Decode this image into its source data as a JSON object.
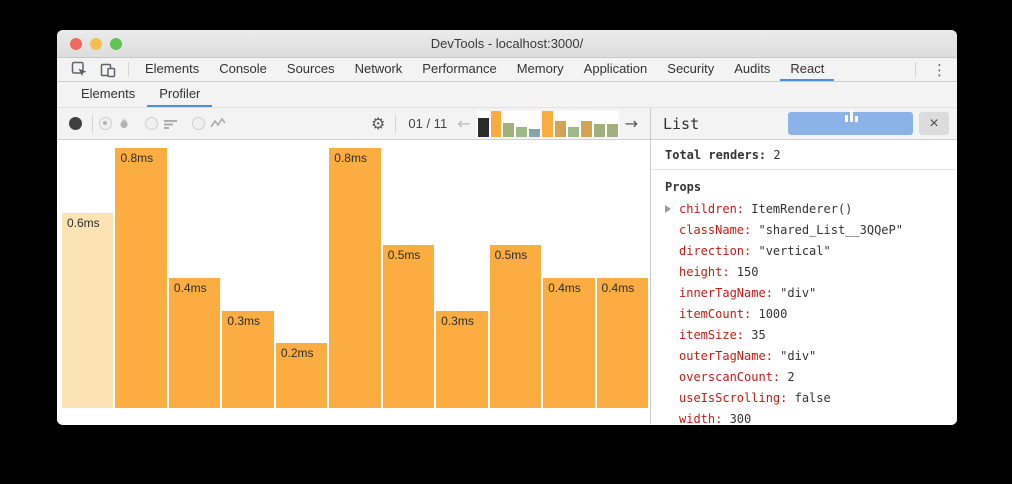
{
  "window": {
    "title": "DevTools - localhost:3000/"
  },
  "traffic_lights": {
    "red": "#ed6a5e",
    "yellow": "#f5bf4f",
    "green": "#61c454"
  },
  "main_tabs": {
    "items": [
      "Elements",
      "Console",
      "Sources",
      "Network",
      "Performance",
      "Memory",
      "Application",
      "Security",
      "Audits",
      "React"
    ],
    "selected": "React"
  },
  "sub_tabs": {
    "items": [
      "Elements",
      "Profiler"
    ],
    "selected": "Profiler"
  },
  "toolbar": {
    "record_icon": "record-circle",
    "view_toggles": [
      "flamegraph-view",
      "ranked-view",
      "interactions-view"
    ],
    "selected_toggle": "flamegraph-view",
    "gear_glyph": "⚙",
    "pagination_label": "01 / 11",
    "prev_arrow": "←",
    "next_arrow": "→",
    "minimap_bars": [
      {
        "color": "#2b2b2b",
        "h": 0.72
      },
      {
        "color": "#fbac3f",
        "h": 1.0
      },
      {
        "color": "#a2b07e",
        "h": 0.52
      },
      {
        "color": "#9db88a",
        "h": 0.4
      },
      {
        "color": "#86a4a8",
        "h": 0.3
      },
      {
        "color": "#fbac3f",
        "h": 1.0
      },
      {
        "color": "#d4a355",
        "h": 0.62
      },
      {
        "color": "#9db88a",
        "h": 0.4
      },
      {
        "color": "#d4a355",
        "h": 0.62
      },
      {
        "color": "#a2b07e",
        "h": 0.5
      },
      {
        "color": "#a2b07e",
        "h": 0.5
      }
    ]
  },
  "chart_data": {
    "type": "bar",
    "title": "React Profiler flamegraph - commit durations",
    "values": [
      0.6,
      0.8,
      0.4,
      0.3,
      0.2,
      0.8,
      0.5,
      0.3,
      0.5,
      0.4,
      0.4
    ],
    "labels": [
      "0.6ms",
      "0.8ms",
      "0.4ms",
      "0.3ms",
      "0.2ms",
      "0.8ms",
      "0.5ms",
      "0.3ms",
      "0.5ms",
      "0.4ms",
      "0.4ms"
    ],
    "unit": "ms",
    "ylim": [
      0,
      0.8
    ],
    "bar_color": "#fbad41",
    "highlight_color": "#fde3b4",
    "highlight_index": 0,
    "grid": false,
    "legend": false
  },
  "panel": {
    "title": "List",
    "close_glyph": "×",
    "total_renders_label": "Total renders:",
    "total_renders_value": "2",
    "props_label": "Props",
    "props": [
      {
        "key": "children",
        "value": "ItemRenderer()",
        "expandable": true
      },
      {
        "key": "className",
        "value": "\"shared_List__3QQeP\"",
        "expandable": false
      },
      {
        "key": "direction",
        "value": "\"vertical\"",
        "expandable": false
      },
      {
        "key": "height",
        "value": "150",
        "expandable": false
      },
      {
        "key": "innerTagName",
        "value": "\"div\"",
        "expandable": false
      },
      {
        "key": "itemCount",
        "value": "1000",
        "expandable": false
      },
      {
        "key": "itemSize",
        "value": "35",
        "expandable": false
      },
      {
        "key": "outerTagName",
        "value": "\"div\"",
        "expandable": false
      },
      {
        "key": "overscanCount",
        "value": "2",
        "expandable": false
      },
      {
        "key": "useIsScrolling",
        "value": "false",
        "expandable": false
      },
      {
        "key": "width",
        "value": "300",
        "expandable": false
      }
    ]
  },
  "kebab_glyph": "⋮"
}
